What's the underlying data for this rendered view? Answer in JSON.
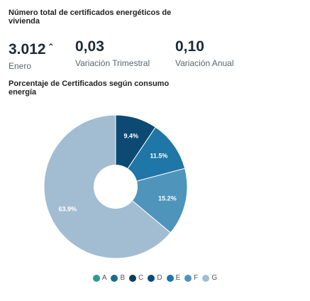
{
  "kpi_section": {
    "title": "Número total de certificados energéticos de vivienda",
    "items": [
      {
        "value": "3.012",
        "label": "Enero",
        "trend": "up"
      },
      {
        "value": "0,03",
        "label": "Variación Trimestral"
      },
      {
        "value": "0,10",
        "label": "Variación Anual"
      }
    ]
  },
  "chart_data": {
    "type": "pie",
    "title": "Porcentaje de Certificados según consumo energía",
    "categories": [
      "A",
      "B",
      "C",
      "D",
      "E",
      "F",
      "G"
    ],
    "values": [
      0,
      0,
      0,
      9.4,
      11.5,
      15.2,
      63.9
    ],
    "data_labels": [
      "",
      "",
      "",
      "9.4%",
      "11.5%",
      "15.2%",
      "63.9%"
    ],
    "colors": [
      "#2a9d8f",
      "#1c6c8c",
      "#0b3c5d",
      "#0d4a73",
      "#1e77a6",
      "#4f94bb",
      "#a2bdd2"
    ],
    "legend_position": "bottom"
  }
}
